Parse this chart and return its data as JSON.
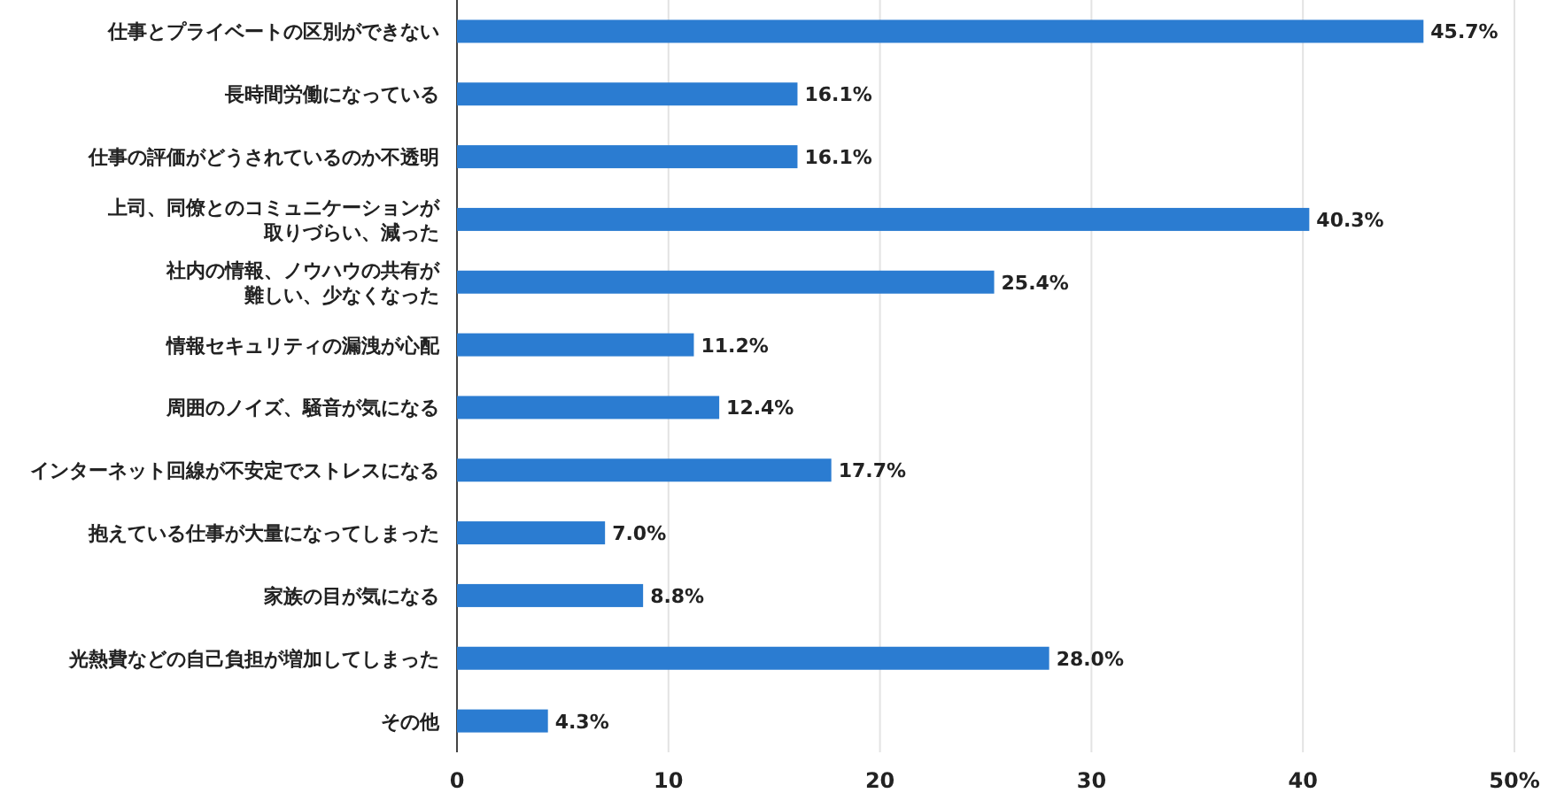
{
  "chart_data": {
    "type": "bar",
    "orientation": "horizontal",
    "categories": [
      "仕事とプライベートの区別ができない",
      "長時間労働になっている",
      "仕事の評価がどうされているのか不透明",
      "上司、同僚とのコミュニケーションが取りづらい、減った",
      "社内の情報、ノウハウの共有が難しい、少なくなった",
      "情報セキュリティの漏洩が心配",
      "周囲のノイズ、騒音が気になる",
      "インターネット回線が不安定でストレスになる",
      "抱えている仕事が大量になってしまった",
      "家族の目が気になる",
      "光熱費などの自己負担が増加してしまった",
      "その他"
    ],
    "values": [
      45.7,
      16.1,
      16.1,
      40.3,
      25.4,
      11.2,
      12.4,
      17.7,
      7.0,
      8.8,
      28.0,
      4.3
    ],
    "value_labels": [
      "45.7%",
      "16.1%",
      "16.1%",
      "40.3%",
      "25.4%",
      "11.2%",
      "12.4%",
      "17.7%",
      "7.0%",
      "8.8%",
      "28.0%",
      "4.3%"
    ],
    "color": "#2b7cd1",
    "xlim": [
      0,
      50
    ],
    "xticks": [
      0,
      10,
      20,
      30,
      40,
      {
        "value": 50,
        "label": "50%"
      }
    ],
    "grid": "x"
  }
}
